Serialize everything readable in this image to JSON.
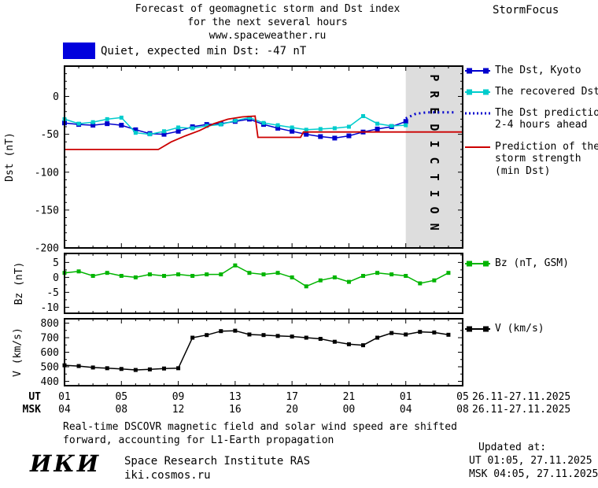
{
  "header": {
    "title_line1": "Forecast of geomagnetic storm and Dst index",
    "title_line2": "for the next several hours",
    "title_line3": "www.spaceweather.ru",
    "brand": "StormFocus"
  },
  "status": {
    "swatch_color": "#0000dd",
    "label": "Quiet, expected min Dst: -47 nT"
  },
  "legend": {
    "dst": [
      {
        "marker": {
          "type": "squares-line",
          "color": "#0000cd"
        },
        "lines": [
          "The Dst, Kyoto"
        ]
      },
      {
        "marker": {
          "type": "squares-line",
          "color": "#00cccc"
        },
        "lines": [
          "The recovered Dst"
        ]
      },
      {
        "marker": {
          "type": "dotted-line",
          "color": "#0000cd"
        },
        "lines": [
          "The Dst prediction",
          "2-4 hours ahead"
        ]
      },
      {
        "marker": {
          "type": "line",
          "color": "#cc0000"
        },
        "lines": [
          "Prediction of the",
          "storm strength",
          "(min Dst)"
        ]
      }
    ],
    "bz": [
      {
        "marker": {
          "type": "squares-line",
          "color": "#00b400"
        },
        "lines": [
          "Bz (nT, GSM)"
        ]
      }
    ],
    "v": [
      {
        "marker": {
          "type": "squares-line",
          "color": "#000000"
        },
        "lines": [
          "V (km/s)"
        ]
      }
    ]
  },
  "chart_data": [
    {
      "panel": "dst",
      "type": "line",
      "ylabel": "Dst (nT)",
      "ylim": [
        40,
        -200
      ],
      "yticks": [
        0,
        -50,
        -100,
        -150,
        -200
      ],
      "ytick_labels": [
        "0",
        "-50",
        "-100",
        "-150",
        "-200"
      ],
      "minor_step": 10,
      "region": {
        "from": 24,
        "to": 28,
        "color": "#dddddd",
        "watermark": "PREDICTION",
        "watermark_color": "#b0b0b0"
      },
      "series": [
        {
          "name": "dst-kyoto",
          "label": "The Dst, Kyoto",
          "color": "#0000cd",
          "width": 1.5,
          "marker": true,
          "marker_size": 6,
          "x": [
            0,
            1,
            2,
            3,
            4,
            5,
            6,
            7,
            8,
            9,
            10,
            11,
            12,
            13,
            14,
            15,
            16,
            17,
            18,
            19,
            20,
            21,
            22,
            23,
            24
          ],
          "y": [
            -35,
            -37,
            -38,
            -36,
            -38,
            -44,
            -49,
            -50,
            -46,
            -40,
            -37,
            -36,
            -33,
            -30,
            -37,
            -42,
            -46,
            -50,
            -53,
            -55,
            -52,
            -47,
            -43,
            -40,
            -33
          ]
        },
        {
          "name": "recovered-dst",
          "label": "The recovered Dst",
          "color": "#00cccc",
          "width": 1.5,
          "marker": true,
          "marker_size": 5,
          "x": [
            0,
            1,
            2,
            3,
            4,
            5,
            6,
            7,
            8,
            9,
            10,
            11,
            12,
            13,
            14,
            15,
            16,
            17,
            18,
            19,
            20,
            21,
            22,
            23,
            24
          ],
          "y": [
            -30,
            -36,
            -34,
            -30,
            -28,
            -48,
            -50,
            -46,
            -41,
            -42,
            -39,
            -37,
            -32,
            -28,
            -35,
            -38,
            -41,
            -44,
            -43,
            -42,
            -40,
            -26,
            -36,
            -39,
            -38
          ]
        },
        {
          "name": "dst-prediction",
          "label": "The Dst prediction 2-4 hours ahead",
          "color": "#0000cd",
          "width": 3,
          "dash": "2 4",
          "marker": false,
          "x": [
            24,
            24.7,
            25.5,
            26.5,
            27.4
          ],
          "y": [
            -29,
            -23,
            -21,
            -21,
            -21
          ]
        },
        {
          "name": "storm-strength-prediction",
          "label": "Prediction of the storm strength (min Dst)",
          "color": "#cc0000",
          "width": 1.8,
          "marker": false,
          "x": [
            0,
            6.6,
            7.5,
            8.5,
            9.5,
            10.5,
            11.5,
            12.5,
            13.4,
            13.6,
            16.6,
            16.8,
            28
          ],
          "y": [
            -70,
            -70,
            -60,
            -52,
            -45,
            -36,
            -30,
            -27,
            -26,
            -54,
            -54,
            -47,
            -47
          ]
        }
      ]
    },
    {
      "panel": "bz",
      "type": "line",
      "ylabel": "Bz (nT)",
      "ylim": [
        8,
        -12
      ],
      "yticks": [
        5,
        0,
        -5,
        -10
      ],
      "ytick_labels": [
        "5",
        "0",
        "-5",
        "-10"
      ],
      "minor_step": 2.5,
      "series": [
        {
          "name": "bz-gsm",
          "label": "Bz (nT, GSM)",
          "color": "#00b400",
          "width": 1.5,
          "marker": true,
          "marker_size": 5,
          "x": [
            0,
            1,
            2,
            3,
            4,
            5,
            6,
            7,
            8,
            9,
            10,
            11,
            12,
            13,
            14,
            15,
            16,
            17,
            18,
            19,
            20,
            21,
            22,
            23,
            24,
            25,
            26,
            27
          ],
          "y": [
            1.5,
            2,
            0.5,
            1.5,
            0.5,
            0,
            1,
            0.5,
            1,
            0.5,
            1,
            1,
            4,
            1.5,
            1,
            1.5,
            0,
            -3,
            -1,
            0,
            -1.5,
            0.5,
            1.5,
            1,
            0.5,
            -2,
            -1,
            1.5
          ]
        }
      ]
    },
    {
      "panel": "v",
      "type": "line",
      "ylabel": "V (km/s)",
      "ylim": [
        830,
        370
      ],
      "yticks": [
        800,
        700,
        600,
        500,
        400
      ],
      "ytick_labels": [
        "800",
        "700",
        "600",
        "500",
        "400"
      ],
      "minor_step": 50,
      "series": [
        {
          "name": "solar-wind-speed",
          "label": "V (km/s)",
          "color": "#000000",
          "width": 1.5,
          "marker": true,
          "marker_size": 5,
          "x": [
            0,
            1,
            2,
            3,
            4,
            5,
            6,
            7,
            8,
            9,
            10,
            11,
            12,
            13,
            14,
            15,
            16,
            17,
            18,
            19,
            20,
            21,
            22,
            23,
            24,
            25,
            26,
            27
          ],
          "y": [
            510,
            505,
            495,
            490,
            485,
            478,
            482,
            488,
            490,
            700,
            718,
            745,
            748,
            722,
            718,
            712,
            708,
            700,
            692,
            672,
            655,
            648,
            700,
            732,
            722,
            740,
            736,
            720
          ]
        }
      ]
    }
  ],
  "xaxis": {
    "xlim": [
      0,
      28
    ],
    "xticks": [
      0,
      4,
      8,
      12,
      16,
      20,
      24,
      28
    ],
    "minor_step": 1,
    "rows": [
      {
        "label": "UT",
        "label_color": "#000000",
        "values": [
          "01",
          "05",
          "09",
          "13",
          "17",
          "21",
          "01",
          "05"
        ],
        "suffix": "26.11-27.11.2025"
      },
      {
        "label": "MSK",
        "label_color": "#cc0000",
        "values": [
          "04",
          "08",
          "12",
          "16",
          "20",
          "00",
          "04",
          "08"
        ],
        "suffix": "26.11-27.11.2025"
      }
    ]
  },
  "footnote": {
    "line1": "Real-time DSCOVR magnetic field and solar wind speed are shifted",
    "line2": "forward, accounting for L1-Earth propagation"
  },
  "footer": {
    "logo": "ИКИ",
    "org": "Space Research Institute RAS",
    "site": "iki.cosmos.ru",
    "updated_label": "Updated at:",
    "updated_ut": "UT  01:05, 27.11.2025",
    "updated_msk": "MSK 04:05, 27.11.2025"
  }
}
